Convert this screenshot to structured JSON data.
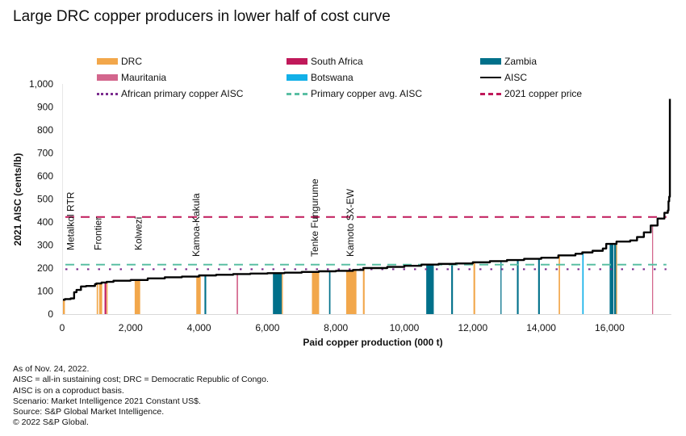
{
  "title": "Large DRC copper producers in lower half of cost curve",
  "legend": [
    {
      "label": "DRC",
      "kind": "bar",
      "color": "#F2A74B"
    },
    {
      "label": "South Africa",
      "kind": "bar",
      "color": "#C0195A"
    },
    {
      "label": "Zambia",
      "kind": "bar",
      "color": "#00708A"
    },
    {
      "label": "Mauritania",
      "kind": "bar",
      "color": "#D3668D"
    },
    {
      "label": "Botswana",
      "kind": "bar",
      "color": "#12B0E8"
    },
    {
      "label": "AISC",
      "kind": "solid",
      "color": "#000000"
    },
    {
      "label": "African primary copper AISC",
      "kind": "dotted",
      "color": "#7B2C8E"
    },
    {
      "label": "Primary copper avg. AISC",
      "kind": "dashed",
      "color": "#5ABFA3"
    },
    {
      "label": "2021 copper price",
      "kind": "dashed",
      "color": "#C0195A"
    }
  ],
  "notes": [
    "As of Nov. 24, 2022.",
    "AISC = all-in sustaining cost; DRC = Democratic Republic of Congo.",
    "AISC is on a coproduct basis.",
    "Scenario: Market Intelligence 2021 Constant US$.",
    "Source: S&P Global Market Intelligence.",
    "© 2022 S&P Global."
  ],
  "chart_data": {
    "type": "area",
    "title": "Large DRC copper producers in lower half of cost curve",
    "xlabel": "Paid copper production (000 t)",
    "ylabel": "2021 AISC (cents/lb)",
    "xlim": [
      0,
      17800
    ],
    "ylim": [
      0,
      1000
    ],
    "xticks": [
      0,
      2000,
      4000,
      6000,
      8000,
      10000,
      12000,
      14000,
      16000
    ],
    "xtick_labels": [
      "0",
      "2,000",
      "4,000",
      "6,000",
      "8,000",
      "10,000",
      "12,000",
      "14,000",
      "16,000"
    ],
    "yticks": [
      0,
      100,
      200,
      300,
      400,
      500,
      600,
      700,
      800,
      900,
      1000
    ],
    "ytick_labels": [
      "0",
      "100",
      "200",
      "300",
      "400",
      "500",
      "600",
      "700",
      "800",
      "900",
      "1,000"
    ],
    "grid": false,
    "legend_position": "top",
    "reference_lines": [
      {
        "name": "African primary copper AISC",
        "value": 195,
        "style": "dotted",
        "color": "#7B2C8E"
      },
      {
        "name": "Primary copper avg. AISC",
        "value": 215,
        "style": "dashed",
        "color": "#5ABFA3"
      },
      {
        "name": "2021 copper price",
        "value": 422,
        "style": "dashed",
        "color": "#C0195A"
      }
    ],
    "aisc_curve": {
      "x": [
        0,
        80,
        250,
        350,
        420,
        550,
        700,
        900,
        960,
        1000,
        1150,
        1300,
        1500,
        2000,
        2500,
        3000,
        3500,
        4000,
        4500,
        5000,
        5500,
        6000,
        6500,
        7000,
        7500,
        8000,
        8500,
        8800,
        9500,
        10000,
        10500,
        11000,
        11500,
        12000,
        12500,
        13000,
        13500,
        14000,
        14500,
        15000,
        15200,
        15500,
        15800,
        15900,
        16200,
        16600,
        16800,
        17000,
        17200,
        17400,
        17600,
        17700,
        17720,
        17740,
        17760
      ],
      "y": [
        62,
        65,
        68,
        95,
        105,
        120,
        122,
        122,
        130,
        133,
        137,
        140,
        145,
        148,
        155,
        160,
        163,
        168,
        171,
        174,
        176,
        178,
        180,
        183,
        186,
        188,
        192,
        200,
        205,
        210,
        215,
        218,
        220,
        225,
        230,
        235,
        240,
        245,
        255,
        262,
        268,
        275,
        285,
        305,
        315,
        320,
        335,
        355,
        385,
        415,
        440,
        450,
        490,
        510,
        935
      ]
    },
    "country_bars": [
      {
        "x0": 0,
        "x1": 80,
        "country": "DRC"
      },
      {
        "x0": 1010,
        "x1": 1050,
        "country": "DRC"
      },
      {
        "x0": 1080,
        "x1": 1170,
        "country": "DRC"
      },
      {
        "x0": 1240,
        "x1": 1290,
        "country": "South Africa"
      },
      {
        "x0": 1300,
        "x1": 1330,
        "country": "DRC"
      },
      {
        "x0": 2120,
        "x1": 2280,
        "country": "DRC"
      },
      {
        "x0": 3920,
        "x1": 4050,
        "country": "DRC"
      },
      {
        "x0": 4160,
        "x1": 4210,
        "country": "Zambia"
      },
      {
        "x0": 5100,
        "x1": 5140,
        "country": "Mauritania"
      },
      {
        "x0": 6160,
        "x1": 6420,
        "country": "Zambia"
      },
      {
        "x0": 6420,
        "x1": 6450,
        "country": "DRC"
      },
      {
        "x0": 7300,
        "x1": 7510,
        "country": "DRC"
      },
      {
        "x0": 7800,
        "x1": 7840,
        "country": "Zambia"
      },
      {
        "x0": 8300,
        "x1": 8600,
        "country": "DRC"
      },
      {
        "x0": 8790,
        "x1": 8840,
        "country": "DRC"
      },
      {
        "x0": 10640,
        "x1": 10860,
        "country": "Zambia"
      },
      {
        "x0": 11370,
        "x1": 11420,
        "country": "Zambia"
      },
      {
        "x0": 12020,
        "x1": 12070,
        "country": "DRC"
      },
      {
        "x0": 12810,
        "x1": 12840,
        "country": "Zambia"
      },
      {
        "x0": 13290,
        "x1": 13340,
        "country": "Zambia"
      },
      {
        "x0": 13910,
        "x1": 13960,
        "country": "Zambia"
      },
      {
        "x0": 14510,
        "x1": 14550,
        "country": "DRC"
      },
      {
        "x0": 15200,
        "x1": 15240,
        "country": "Botswana"
      },
      {
        "x0": 16000,
        "x1": 16110,
        "country": "Zambia"
      },
      {
        "x0": 16130,
        "x1": 16190,
        "country": "Zambia"
      },
      {
        "x0": 16190,
        "x1": 16220,
        "country": "DRC"
      },
      {
        "x0": 17240,
        "x1": 17270,
        "country": "Mauritania"
      }
    ],
    "annotations": [
      {
        "label": "Metalkol RTR",
        "x": 250
      },
      {
        "label": "Frontier",
        "x": 1050
      },
      {
        "label": "Kolwezi",
        "x": 2230
      },
      {
        "label": "Kamoa-Kakula",
        "x": 3920
      },
      {
        "label": "Tenke Fungurume",
        "x": 7380
      },
      {
        "label": "Kamoto SX-EW",
        "x": 8420
      }
    ]
  }
}
